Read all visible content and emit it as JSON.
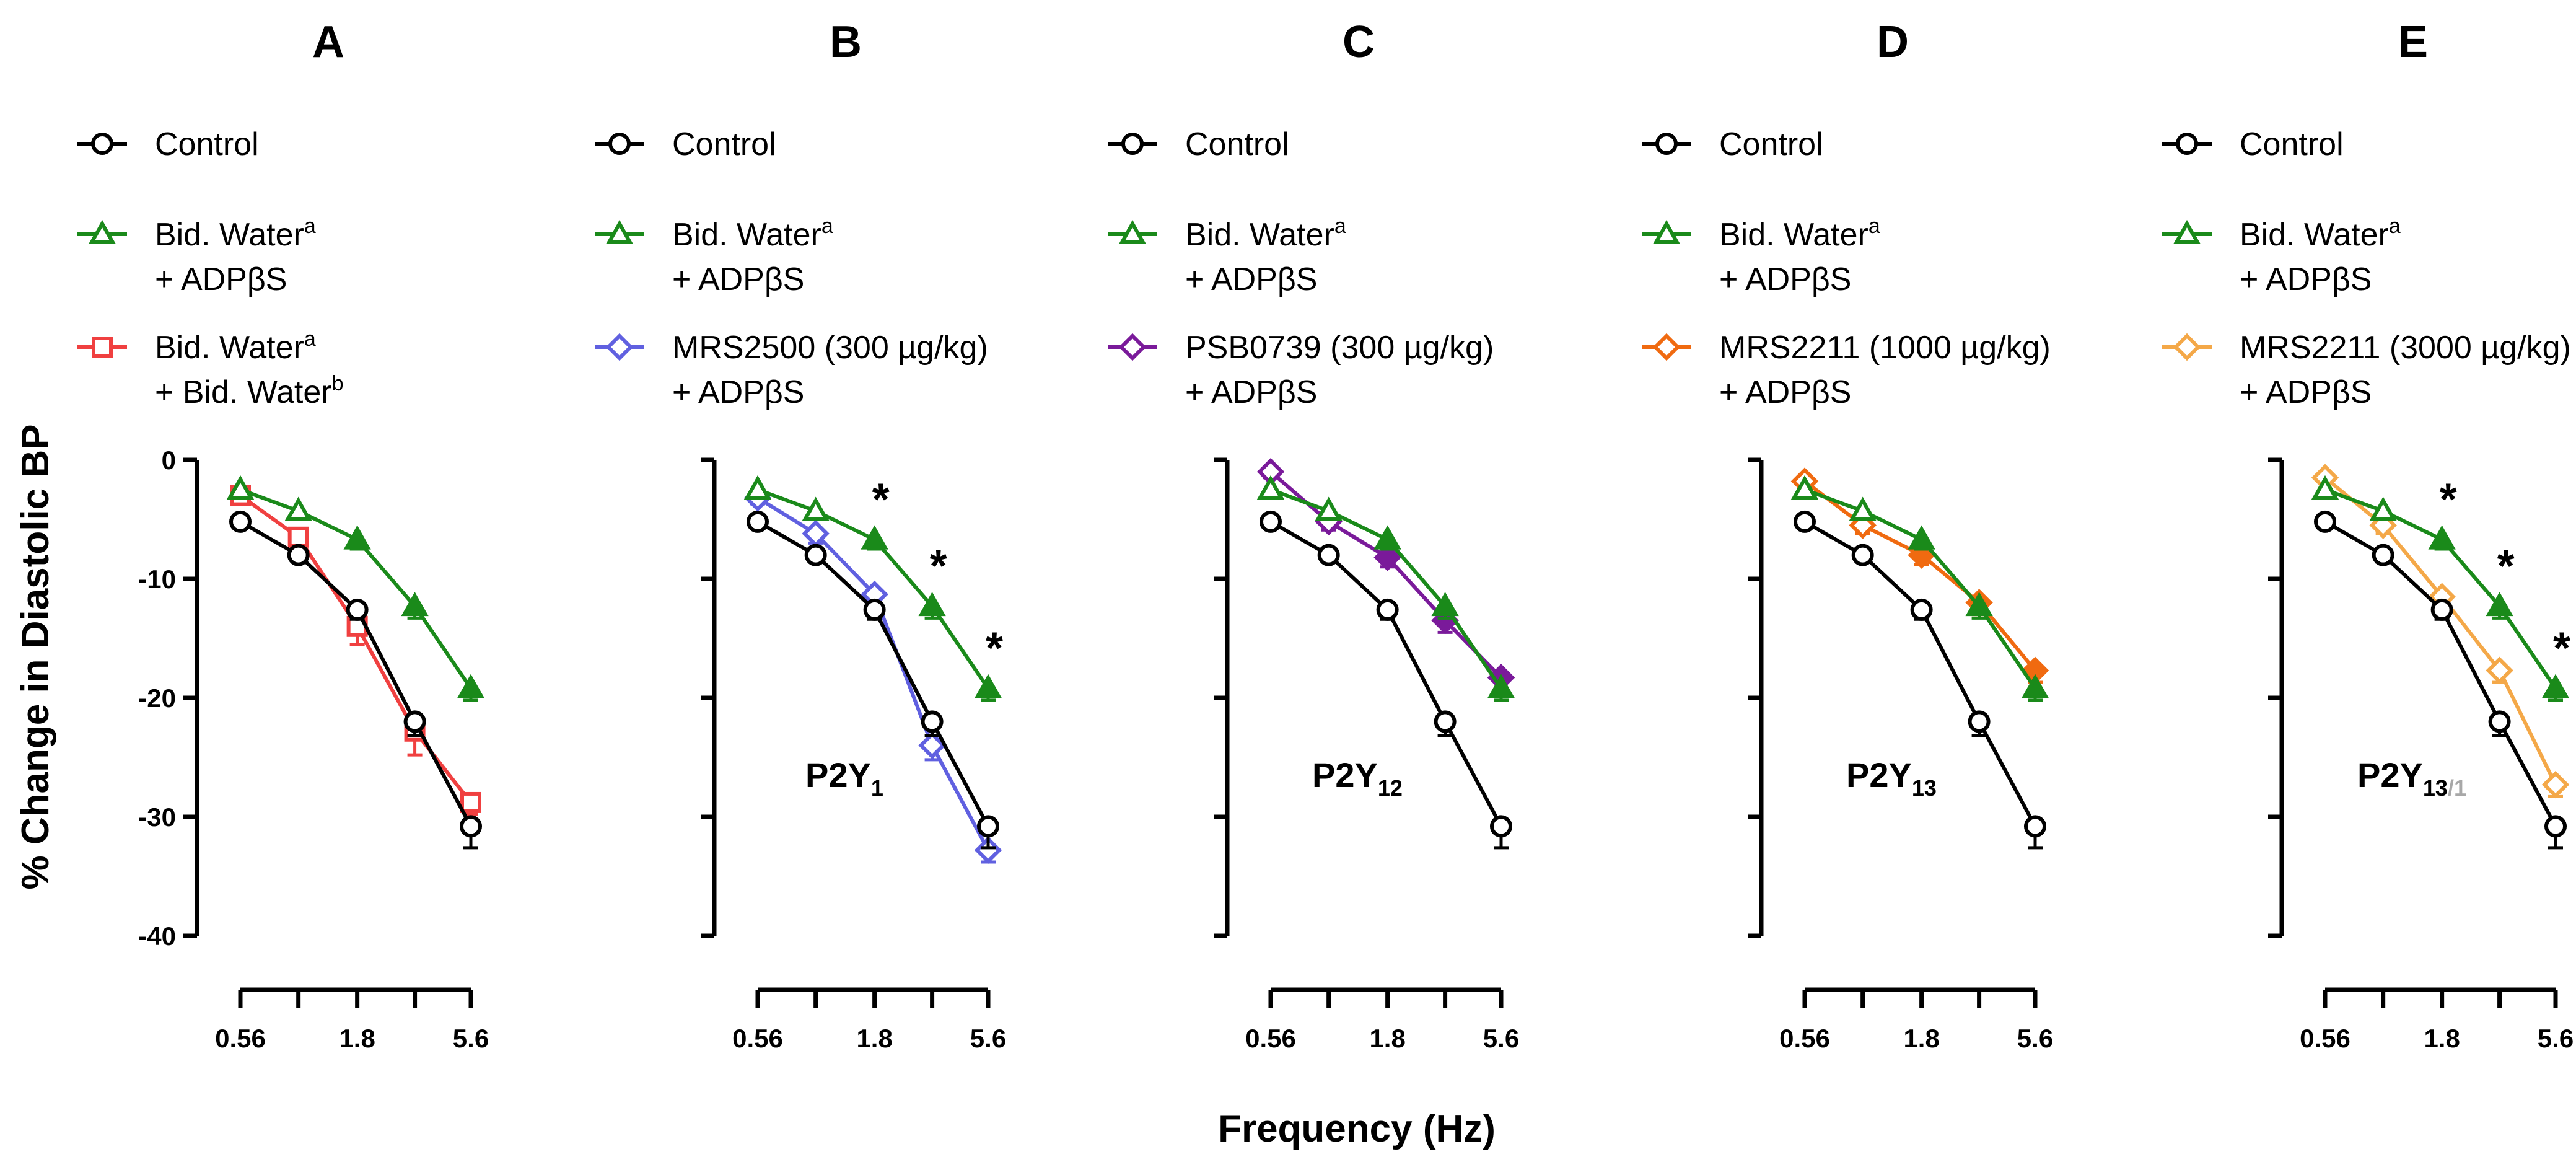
{
  "colors": {
    "control": "#000000",
    "green": "#1a8a1a",
    "red": "#f04040",
    "blue": "#6060e0",
    "purple": "#7a1a9a",
    "orange": "#f06a10",
    "light_orange": "#f4a848",
    "gray": "#a8a8a8"
  },
  "axes": {
    "ylabel": "% Change in Diastolic BP",
    "xlabel": "Frequency (Hz)",
    "y_ticks": [
      "0",
      "-10",
      "-20",
      "-30",
      "-40"
    ]
  },
  "chart_data": [
    {
      "type": "line",
      "panel": "A",
      "receptor": "",
      "receptor_sub": "",
      "receptor_sub2": "",
      "x": [
        0.56,
        1.0,
        1.8,
        3.2,
        5.6
      ],
      "x_tick_labels": [
        "0.56",
        "1.8",
        "5.6"
      ],
      "ylim": [
        -40,
        0
      ],
      "legend": [
        {
          "series": 0,
          "line1": "Control",
          "sup1": "",
          "line2": "",
          "sup2": ""
        },
        {
          "series": 1,
          "line1": "Bid. Water",
          "sup1": "a",
          "line2": "+ ADPβS",
          "sup2": ""
        },
        {
          "series": 2,
          "line1": "Bid. Water",
          "sup1": "a",
          "line2": "+ Bid. Water",
          "sup2": "b"
        }
      ],
      "series": [
        {
          "name": "Control",
          "color": "control",
          "marker": "circle",
          "fill": "open",
          "values": [
            -5.2,
            -8.0,
            -12.6,
            -22.0,
            -30.8
          ],
          "err": [
            0.6,
            0.6,
            0.8,
            1.2,
            1.8
          ]
        },
        {
          "name": "Bid. Water + ADPβS",
          "color": "green",
          "marker": "triangle",
          "fill": "partial",
          "values": [
            -2.5,
            -4.3,
            -6.7,
            -12.3,
            -19.2
          ],
          "err": [
            0.5,
            0.6,
            0.8,
            1.0,
            1.0
          ]
        },
        {
          "name": "Bid. Water + Bid. Water",
          "color": "red",
          "marker": "square",
          "fill": "open",
          "values": [
            -3.0,
            -6.5,
            -14.0,
            -22.8,
            -28.8
          ],
          "err": [
            0.6,
            1.0,
            1.5,
            2.0,
            1.0
          ]
        }
      ],
      "significant_x": []
    },
    {
      "type": "line",
      "panel": "B",
      "receptor": "P2Y",
      "receptor_sub": "1",
      "receptor_sub2": "",
      "x": [
        0.56,
        1.0,
        1.8,
        3.2,
        5.6
      ],
      "x_tick_labels": [
        "0.56",
        "1.8",
        "5.6"
      ],
      "ylim": [
        -40,
        0
      ],
      "legend": [
        {
          "series": 0,
          "line1": "Control",
          "sup1": "",
          "line2": "",
          "sup2": ""
        },
        {
          "series": 1,
          "line1": "Bid. Water",
          "sup1": "a",
          "line2": "+ ADPβS",
          "sup2": ""
        },
        {
          "series": 2,
          "line1": "MRS2500 (300 µg/kg)",
          "sup1": "",
          "line2": "+ ADPβS",
          "sup2": ""
        }
      ],
      "series": [
        {
          "name": "Control",
          "color": "control",
          "marker": "circle",
          "fill": "open",
          "values": [
            -5.2,
            -8.0,
            -12.6,
            -22.0,
            -30.8
          ],
          "err": [
            0.6,
            0.6,
            0.8,
            1.2,
            1.8
          ]
        },
        {
          "name": "Bid. Water + ADPβS",
          "color": "green",
          "marker": "triangle",
          "fill": "partial",
          "values": [
            -2.5,
            -4.3,
            -6.7,
            -12.3,
            -19.2
          ],
          "err": [
            0.5,
            0.6,
            0.8,
            1.0,
            1.0
          ]
        },
        {
          "name": "MRS2500 (300 µg/kg) + ADPβS",
          "color": "blue",
          "marker": "diamond",
          "fill": "open",
          "values": [
            -3.2,
            -6.2,
            -11.3,
            -24.0,
            -32.8
          ],
          "err": [
            0.5,
            0.8,
            0.8,
            1.2,
            1.0
          ]
        }
      ],
      "significant_x": [
        1.8,
        3.2,
        5.6
      ]
    },
    {
      "type": "line",
      "panel": "C",
      "receptor": "P2Y",
      "receptor_sub": "12",
      "receptor_sub2": "",
      "x": [
        0.56,
        1.0,
        1.8,
        3.2,
        5.6
      ],
      "x_tick_labels": [
        "0.56",
        "1.8",
        "5.6"
      ],
      "ylim": [
        -40,
        0
      ],
      "legend": [
        {
          "series": 0,
          "line1": "Control",
          "sup1": "",
          "line2": "",
          "sup2": ""
        },
        {
          "series": 1,
          "line1": "Bid. Water",
          "sup1": "a",
          "line2": "+ ADPβS",
          "sup2": ""
        },
        {
          "series": 2,
          "line1": "PSB0739 (300 µg/kg)",
          "sup1": "",
          "line2": "+ ADPβS",
          "sup2": ""
        }
      ],
      "series": [
        {
          "name": "Control",
          "color": "control",
          "marker": "circle",
          "fill": "open",
          "values": [
            -5.2,
            -8.0,
            -12.6,
            -22.0,
            -30.8
          ],
          "err": [
            0.6,
            0.6,
            0.8,
            1.2,
            1.8
          ]
        },
        {
          "name": "Bid. Water + ADPβS",
          "color": "green",
          "marker": "triangle",
          "fill": "partial",
          "values": [
            -2.5,
            -4.3,
            -6.7,
            -12.3,
            -19.2
          ],
          "err": [
            0.5,
            0.6,
            0.8,
            1.0,
            1.0
          ]
        },
        {
          "name": "PSB0739 (300 µg/kg) + ADPβS",
          "color": "purple",
          "marker": "diamond",
          "fill": "partial",
          "values": [
            -1.0,
            -5.2,
            -8.2,
            -13.5,
            -18.3
          ],
          "err": [
            0.5,
            0.7,
            0.8,
            1.0,
            1.0
          ]
        }
      ],
      "significant_x": []
    },
    {
      "type": "line",
      "panel": "D",
      "receptor": "P2Y",
      "receptor_sub": "13",
      "receptor_sub2": "",
      "x": [
        0.56,
        1.0,
        1.8,
        3.2,
        5.6
      ],
      "x_tick_labels": [
        "0.56",
        "1.8",
        "5.6"
      ],
      "ylim": [
        -40,
        0
      ],
      "legend": [
        {
          "series": 0,
          "line1": "Control",
          "sup1": "",
          "line2": "",
          "sup2": ""
        },
        {
          "series": 1,
          "line1": "Bid. Water",
          "sup1": "a",
          "line2": "+ ADPβS",
          "sup2": ""
        },
        {
          "series": 2,
          "line1": "MRS2211 (1000 µg/kg)",
          "sup1": "",
          "line2": "+ ADPβS",
          "sup2": ""
        }
      ],
      "series": [
        {
          "name": "Control",
          "color": "control",
          "marker": "circle",
          "fill": "open",
          "values": [
            -5.2,
            -8.0,
            -12.6,
            -22.0,
            -30.8
          ],
          "err": [
            0.6,
            0.6,
            0.8,
            1.2,
            1.8
          ]
        },
        {
          "name": "Bid. Water + ADPβS",
          "color": "green",
          "marker": "triangle",
          "fill": "partial",
          "values": [
            -2.5,
            -4.3,
            -6.7,
            -12.3,
            -19.2
          ],
          "err": [
            0.5,
            0.6,
            0.8,
            1.0,
            1.0
          ]
        },
        {
          "name": "MRS2211 (1000 µg/kg) + ADPβS",
          "color": "orange",
          "marker": "diamond",
          "fill": "partial",
          "values": [
            -1.8,
            -5.5,
            -8.0,
            -12.0,
            -17.7
          ],
          "err": [
            0.5,
            0.7,
            0.8,
            1.0,
            1.0
          ]
        }
      ],
      "significant_x": []
    },
    {
      "type": "line",
      "panel": "E",
      "receptor": "P2Y",
      "receptor_sub": "13",
      "receptor_sub2": "/1",
      "x": [
        0.56,
        1.0,
        1.8,
        3.2,
        5.6
      ],
      "x_tick_labels": [
        "0.56",
        "1.8",
        "5.6"
      ],
      "ylim": [
        -40,
        0
      ],
      "legend": [
        {
          "series": 0,
          "line1": "Control",
          "sup1": "",
          "line2": "",
          "sup2": ""
        },
        {
          "series": 1,
          "line1": "Bid. Water",
          "sup1": "a",
          "line2": "+ ADPβS",
          "sup2": ""
        },
        {
          "series": 2,
          "line1": "MRS2211 (3000 µg/kg)",
          "sup1": "",
          "line2": "+ ADPβS",
          "sup2": ""
        }
      ],
      "series": [
        {
          "name": "Control",
          "color": "control",
          "marker": "circle",
          "fill": "open",
          "values": [
            -5.2,
            -8.0,
            -12.6,
            -22.0,
            -30.8
          ],
          "err": [
            0.6,
            0.6,
            0.8,
            1.2,
            1.8
          ]
        },
        {
          "name": "Bid. Water + ADPβS",
          "color": "green",
          "marker": "triangle",
          "fill": "partial",
          "values": [
            -2.5,
            -4.3,
            -6.7,
            -12.3,
            -19.2
          ],
          "err": [
            0.5,
            0.6,
            0.8,
            1.0,
            1.0
          ]
        },
        {
          "name": "MRS2211 (3000 µg/kg) + ADPβS",
          "color": "light_orange",
          "marker": "diamond",
          "fill": "open",
          "values": [
            -1.5,
            -5.5,
            -11.5,
            -17.7,
            -27.3
          ],
          "err": [
            0.5,
            0.7,
            0.8,
            1.0,
            1.0
          ]
        }
      ],
      "significant_x": [
        1.8,
        3.2,
        5.6
      ]
    }
  ]
}
